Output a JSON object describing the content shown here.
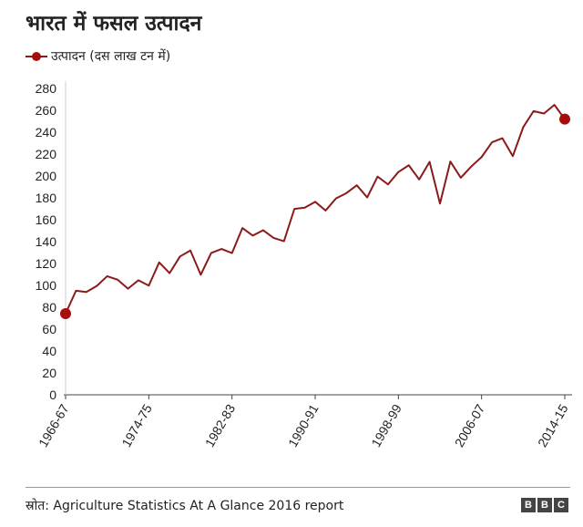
{
  "chart_data": {
    "type": "line",
    "title": "भारत में फसल उत्पादन",
    "legend": "उत्पादन (दस लाख टन में)",
    "legend_position": "top-left",
    "xlabel": "",
    "ylabel": "",
    "ylim": [
      0,
      280
    ],
    "yticks": [
      0,
      20,
      40,
      60,
      80,
      100,
      120,
      140,
      160,
      180,
      200,
      220,
      240,
      260,
      280
    ],
    "xtick_labels": [
      "1966-67",
      "1974-75",
      "1982-83",
      "1990-91",
      "1998-99",
      "2006-07",
      "2014-15"
    ],
    "xtick_every": 8,
    "grid": false,
    "series": [
      {
        "name": "उत्पादन (दस लाख टन में)",
        "color": "#8b1a1a",
        "values": [
          74.2,
          95.1,
          94.0,
          99.5,
          108.4,
          105.2,
          97.0,
          104.7,
          99.8,
          121.0,
          111.2,
          126.4,
          131.9,
          109.7,
          129.6,
          133.3,
          129.5,
          152.4,
          145.5,
          150.4,
          143.4,
          140.4,
          169.9,
          171.0,
          176.4,
          168.4,
          179.5,
          184.3,
          191.5,
          180.4,
          199.4,
          192.3,
          203.6,
          209.8,
          196.8,
          212.9,
          174.8,
          213.2,
          198.4,
          208.6,
          217.3,
          230.8,
          234.5,
          218.1,
          244.5,
          259.3,
          257.1,
          265.0,
          252.0
        ]
      }
    ],
    "marker_color": "#a80d0d"
  },
  "source": "स्रोत: Agriculture Statistics At A Glance 2016 report",
  "logo": [
    "B",
    "B",
    "C"
  ]
}
